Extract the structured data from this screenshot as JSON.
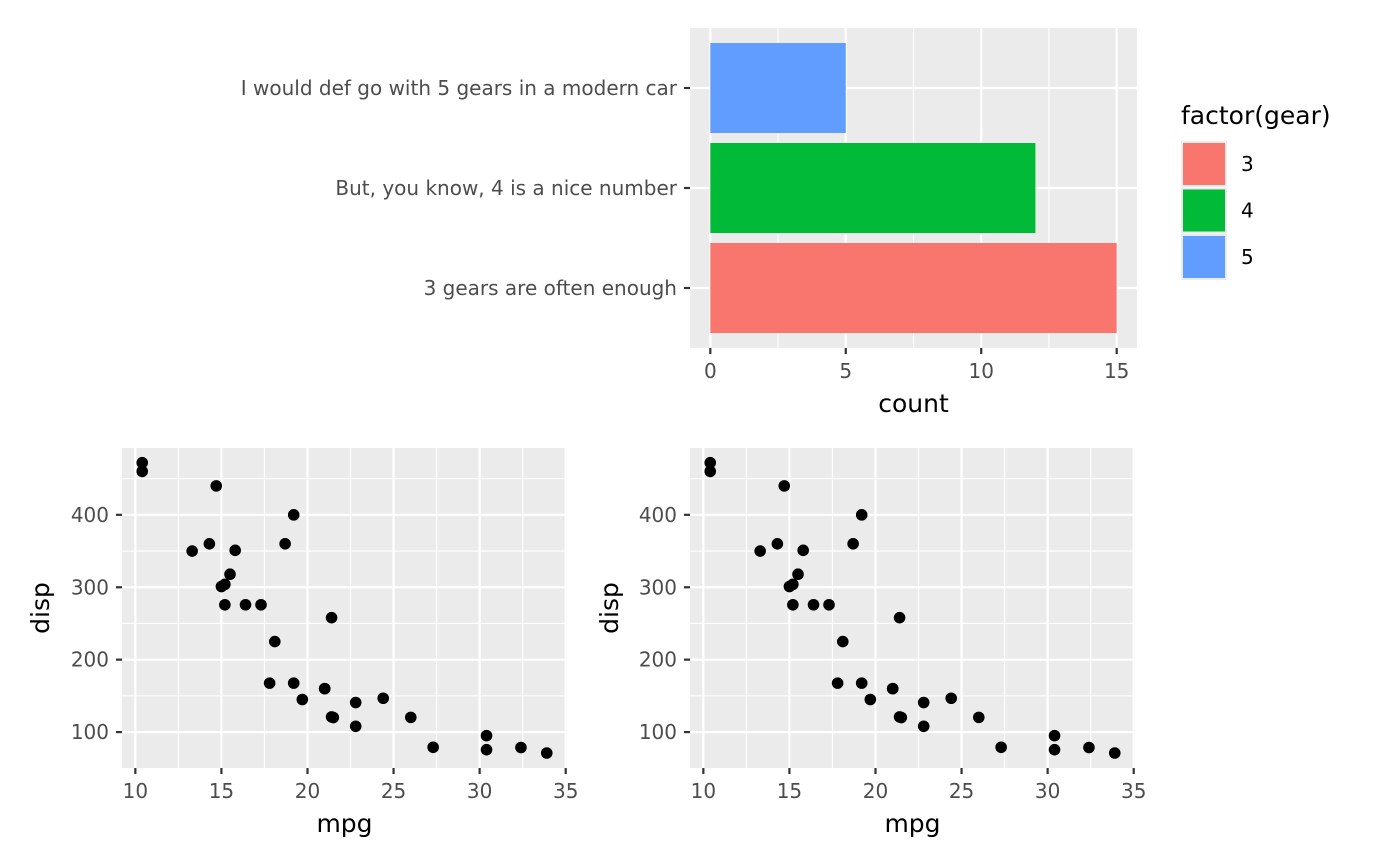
{
  "chart_data": [
    {
      "type": "bar",
      "orientation": "horizontal",
      "categories": [
        "3 gears are often enough",
        "But, you know, 4 is a nice number",
        "I would def go with 5 gears in a modern car"
      ],
      "values": [
        15,
        12,
        5
      ],
      "fill_keys": [
        "3",
        "4",
        "5"
      ],
      "xlabel": "count",
      "ylabel": "",
      "xlim": [
        -0.75,
        15.75
      ],
      "xticks": [
        "0",
        "5",
        "10",
        "15"
      ],
      "legend": {
        "title": "factor(gear)",
        "position": "right",
        "entries": [
          {
            "label": "3",
            "color": "#F8766D"
          },
          {
            "label": "4",
            "color": "#00BA38"
          },
          {
            "label": "5",
            "color": "#619CFF"
          }
        ]
      },
      "grid": true
    },
    {
      "type": "scatter",
      "xlabel": "mpg",
      "ylabel": "disp",
      "xlim": [
        9.225,
        35.075
      ],
      "ylim": [
        50.39,
        492.31
      ],
      "xticks": [
        "10",
        "15",
        "20",
        "25",
        "30",
        "35"
      ],
      "yticks": [
        "100",
        "200",
        "300",
        "400"
      ],
      "point_color": "#000000",
      "grid": true,
      "x": [
        21,
        21,
        22.8,
        21.4,
        18.7,
        18.1,
        14.3,
        24.4,
        22.8,
        19.2,
        17.8,
        16.4,
        17.3,
        15.2,
        10.4,
        10.4,
        14.7,
        32.4,
        30.4,
        33.9,
        21.5,
        15.5,
        15.2,
        13.3,
        19.2,
        27.3,
        26,
        30.4,
        15.8,
        19.7,
        15,
        21.4
      ],
      "y": [
        160,
        160,
        108,
        258,
        360,
        225,
        360,
        146.7,
        140.8,
        167.6,
        167.6,
        275.8,
        275.8,
        275.8,
        472,
        460,
        440,
        78.7,
        75.7,
        71.1,
        120.1,
        318,
        304,
        350,
        400,
        79,
        120.3,
        95.1,
        351,
        145,
        301,
        121
      ]
    },
    {
      "type": "scatter",
      "xlabel": "mpg",
      "ylabel": "disp",
      "xlim": [
        9.225,
        35.075
      ],
      "ylim": [
        50.39,
        492.31
      ],
      "xticks": [
        "10",
        "15",
        "20",
        "25",
        "30",
        "35"
      ],
      "yticks": [
        "100",
        "200",
        "300",
        "400"
      ],
      "point_color": "#000000",
      "grid": true,
      "x": [
        21,
        21,
        22.8,
        21.4,
        18.7,
        18.1,
        14.3,
        24.4,
        22.8,
        19.2,
        17.8,
        16.4,
        17.3,
        15.2,
        10.4,
        10.4,
        14.7,
        32.4,
        30.4,
        33.9,
        21.5,
        15.5,
        15.2,
        13.3,
        19.2,
        27.3,
        26,
        30.4,
        15.8,
        19.7,
        15,
        21.4
      ],
      "y": [
        160,
        160,
        108,
        258,
        360,
        225,
        360,
        146.7,
        140.8,
        167.6,
        167.6,
        275.8,
        275.8,
        275.8,
        472,
        460,
        440,
        78.7,
        75.7,
        71.1,
        120.1,
        318,
        304,
        350,
        400,
        79,
        120.3,
        95.1,
        351,
        145,
        301,
        121
      ]
    }
  ]
}
